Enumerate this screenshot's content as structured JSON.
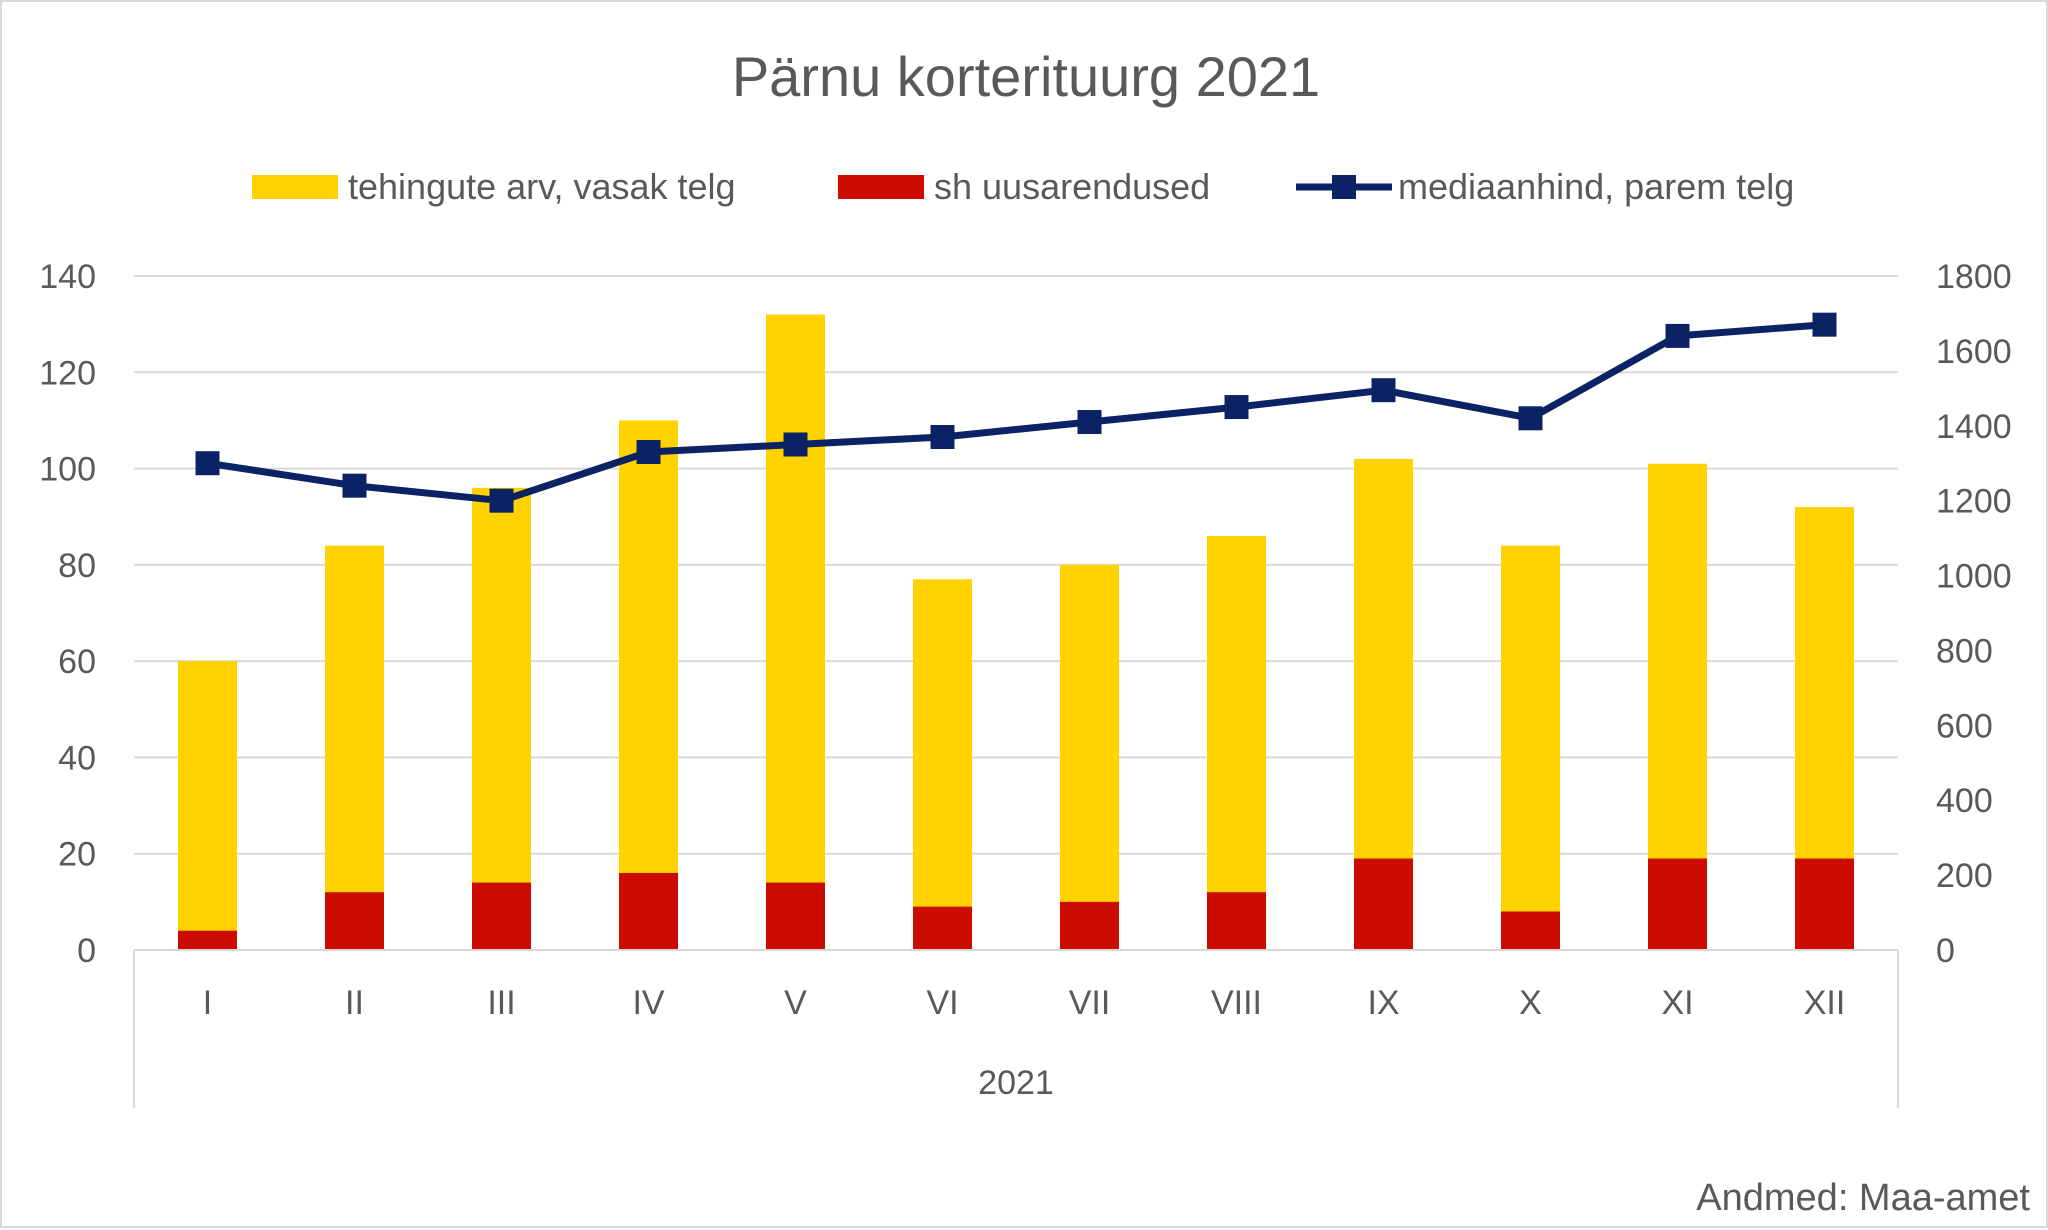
{
  "chart_data": {
    "type": "bar",
    "title": "Pärnu korterituurg 2021",
    "categories": [
      "I",
      "II",
      "III",
      "IV",
      "V",
      "VI",
      "VII",
      "VIII",
      "IX",
      "X",
      "XI",
      "XII"
    ],
    "group_label": "2021",
    "series": [
      {
        "name": "tehingute arv, vasak telg",
        "type": "bar",
        "axis": "left",
        "color": "#FFD200",
        "values": [
          60,
          84,
          96,
          110,
          132,
          77,
          80,
          86,
          102,
          84,
          101,
          92
        ]
      },
      {
        "name": "sh uusarendused",
        "type": "bar",
        "axis": "left",
        "color": "#CC0C00",
        "values": [
          4,
          12,
          14,
          16,
          14,
          9,
          10,
          12,
          19,
          8,
          19,
          19
        ]
      },
      {
        "name": "mediaanhind, parem telg",
        "type": "line",
        "axis": "right",
        "color": "#0B2265",
        "values": [
          1300,
          1240,
          1200,
          1330,
          1350,
          1370,
          1410,
          1450,
          1495,
          1420,
          1640,
          1670
        ]
      }
    ],
    "y_left": {
      "min": 0,
      "max": 140,
      "ticks": [
        "0",
        "20",
        "40",
        "60",
        "80",
        "100",
        "120",
        "140"
      ]
    },
    "y_right": {
      "min": 0,
      "max": 1800,
      "ticks": [
        "0",
        "200",
        "400",
        "600",
        "800",
        "1000",
        "1200",
        "1400",
        "1600",
        "1800"
      ]
    },
    "grid": true,
    "legend_position": "top",
    "source": "Andmed: Maa-amet"
  }
}
